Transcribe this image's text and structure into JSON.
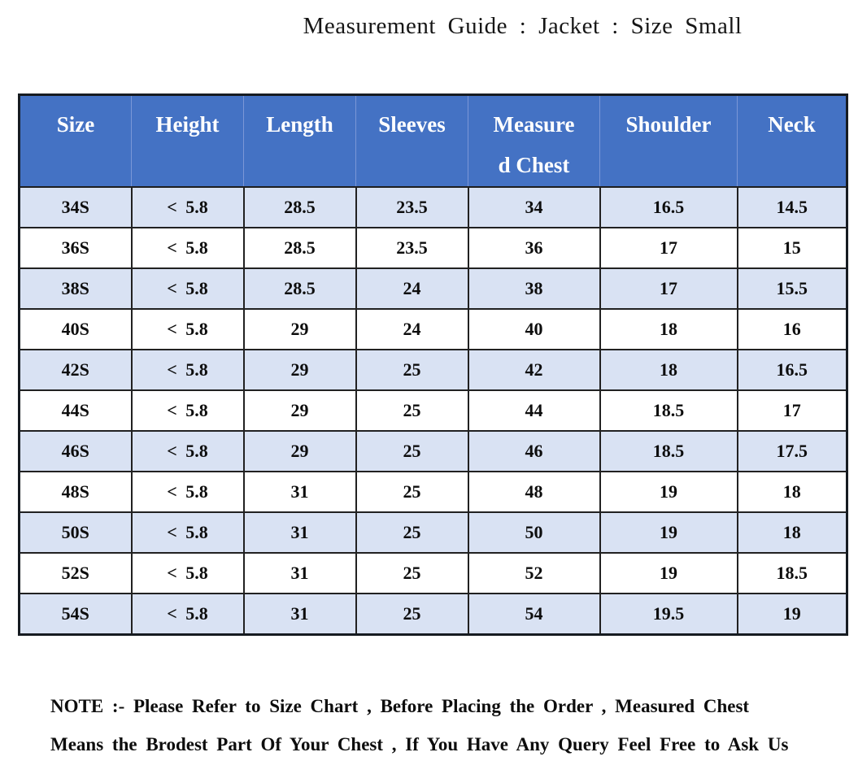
{
  "title": "Measurement Guide : Jacket : Size Small",
  "colors": {
    "header_bg": "#4472C4",
    "header_text": "#FFFFFF",
    "banded_row_bg": "#D9E2F3",
    "plain_row_bg": "#FFFFFF",
    "table_border": "#1E1E1E",
    "body_text": "#0D0D0D"
  },
  "chart_data": {
    "type": "table",
    "title": "Measurement Guide : Jacket : Size Small",
    "columns": [
      "Size",
      "Height",
      "Length",
      "Sleeves",
      "Measured Chest",
      "Shoulder",
      "Neck"
    ],
    "rows": [
      [
        "34S",
        "< 5.8",
        "28.5",
        "23.5",
        "34",
        "16.5",
        "14.5"
      ],
      [
        "36S",
        "< 5.8",
        "28.5",
        "23.5",
        "36",
        "17",
        "15"
      ],
      [
        "38S",
        "< 5.8",
        "28.5",
        "24",
        "38",
        "17",
        "15.5"
      ],
      [
        "40S",
        "< 5.8",
        "29",
        "24",
        "40",
        "18",
        "16"
      ],
      [
        "42S",
        "< 5.8",
        "29",
        "25",
        "42",
        "18",
        "16.5"
      ],
      [
        "44S",
        "< 5.8",
        "29",
        "25",
        "44",
        "18.5",
        "17"
      ],
      [
        "46S",
        "< 5.8",
        "29",
        "25",
        "46",
        "18.5",
        "17.5"
      ],
      [
        "48S",
        "< 5.8",
        "31",
        "25",
        "48",
        "19",
        "18"
      ],
      [
        "50S",
        "< 5.8",
        "31",
        "25",
        "50",
        "19",
        "18"
      ],
      [
        "52S",
        "< 5.8",
        "31",
        "25",
        "52",
        "19",
        "18.5"
      ],
      [
        "54S",
        "< 5.8",
        "31",
        "25",
        "54",
        "19.5",
        "19"
      ]
    ],
    "layout_hints": {
      "header_style": "blue banner, white bold serif text",
      "row_banding": "alternating light-blue / white starting light-blue",
      "measured_chest_header_wraps_as": [
        "Measure",
        "d Chest"
      ]
    }
  },
  "table": {
    "header_display": [
      {
        "lines": [
          "Size"
        ]
      },
      {
        "lines": [
          "Height"
        ]
      },
      {
        "lines": [
          "Length"
        ]
      },
      {
        "lines": [
          "Sleeves"
        ]
      },
      {
        "lines": [
          "Measure",
          "d Chest"
        ]
      },
      {
        "lines": [
          "Shoulder"
        ]
      },
      {
        "lines": [
          "Neck"
        ]
      }
    ]
  },
  "note": {
    "line1": "NOTE :- Please Refer to Size Chart , Before Placing the Order , Measured Chest",
    "line2": "Means the Brodest Part Of Your Chest , If You Have Any Query Feel Free to Ask Us"
  }
}
